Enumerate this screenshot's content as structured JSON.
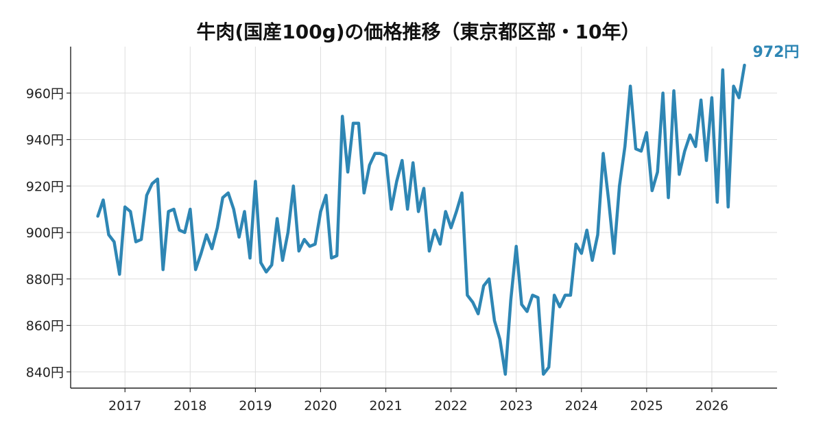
{
  "chart_data": {
    "type": "line",
    "title": "牛肉(国産100g)の価格推移（東京都区部・10年）",
    "xlabel": "",
    "ylabel": "",
    "x_ticks": [
      "2017",
      "2018",
      "2019",
      "2020",
      "2021",
      "2022",
      "2023",
      "2024",
      "2025",
      "2026"
    ],
    "y_ticks": [
      840,
      860,
      880,
      900,
      920,
      940,
      960
    ],
    "y_tick_labels": [
      "840円",
      "860円",
      "880円",
      "900円",
      "920円",
      "940円",
      "960円"
    ],
    "ylim": [
      833,
      980
    ],
    "xlim": [
      "2016-03",
      "2027-01"
    ],
    "grid": true,
    "legend": "none",
    "series": [
      {
        "color": "#2e86b4",
        "points": [
          [
            "2016-08",
            907
          ],
          [
            "2016-09",
            914
          ],
          [
            "2016-10",
            899
          ],
          [
            "2016-11",
            896
          ],
          [
            "2016-12",
            882
          ],
          [
            "2017-01",
            911
          ],
          [
            "2017-02",
            909
          ],
          [
            "2017-03",
            896
          ],
          [
            "2017-04",
            897
          ],
          [
            "2017-05",
            916
          ],
          [
            "2017-06",
            921
          ],
          [
            "2017-07",
            923
          ],
          [
            "2017-08",
            884
          ],
          [
            "2017-09",
            909
          ],
          [
            "2017-10",
            910
          ],
          [
            "2017-11",
            901
          ],
          [
            "2017-12",
            900
          ],
          [
            "2018-01",
            910
          ],
          [
            "2018-02",
            884
          ],
          [
            "2018-03",
            891
          ],
          [
            "2018-04",
            899
          ],
          [
            "2018-05",
            893
          ],
          [
            "2018-06",
            902
          ],
          [
            "2018-07",
            915
          ],
          [
            "2018-08",
            917
          ],
          [
            "2018-09",
            910
          ],
          [
            "2018-10",
            898
          ],
          [
            "2018-11",
            909
          ],
          [
            "2018-12",
            889
          ],
          [
            "2019-01",
            922
          ],
          [
            "2019-02",
            887
          ],
          [
            "2019-03",
            883
          ],
          [
            "2019-04",
            886
          ],
          [
            "2019-05",
            906
          ],
          [
            "2019-06",
            888
          ],
          [
            "2019-07",
            900
          ],
          [
            "2019-08",
            920
          ],
          [
            "2019-09",
            892
          ],
          [
            "2019-10",
            897
          ],
          [
            "2019-11",
            894
          ],
          [
            "2019-12",
            895
          ],
          [
            "2020-01",
            909
          ],
          [
            "2020-02",
            916
          ],
          [
            "2020-03",
            889
          ],
          [
            "2020-04",
            890
          ],
          [
            "2020-05",
            950
          ],
          [
            "2020-06",
            926
          ],
          [
            "2020-07",
            947
          ],
          [
            "2020-08",
            947
          ],
          [
            "2020-09",
            917
          ],
          [
            "2020-10",
            929
          ],
          [
            "2020-11",
            934
          ],
          [
            "2020-12",
            934
          ],
          [
            "2021-01",
            933
          ],
          [
            "2021-02",
            910
          ],
          [
            "2021-03",
            922
          ],
          [
            "2021-04",
            931
          ],
          [
            "2021-05",
            910
          ],
          [
            "2021-06",
            930
          ],
          [
            "2021-07",
            909
          ],
          [
            "2021-08",
            919
          ],
          [
            "2021-09",
            892
          ],
          [
            "2021-10",
            901
          ],
          [
            "2021-11",
            895
          ],
          [
            "2021-12",
            909
          ],
          [
            "2022-01",
            902
          ],
          [
            "2022-02",
            909
          ],
          [
            "2022-03",
            917
          ],
          [
            "2022-04",
            873
          ],
          [
            "2022-05",
            870
          ],
          [
            "2022-06",
            865
          ],
          [
            "2022-07",
            877
          ],
          [
            "2022-08",
            880
          ],
          [
            "2022-09",
            862
          ],
          [
            "2022-10",
            854
          ],
          [
            "2022-11",
            839
          ],
          [
            "2022-12",
            871
          ],
          [
            "2023-01",
            894
          ],
          [
            "2023-02",
            869
          ],
          [
            "2023-03",
            866
          ],
          [
            "2023-04",
            873
          ],
          [
            "2023-05",
            872
          ],
          [
            "2023-06",
            839
          ],
          [
            "2023-07",
            842
          ],
          [
            "2023-08",
            873
          ],
          [
            "2023-09",
            868
          ],
          [
            "2023-10",
            873
          ],
          [
            "2023-11",
            873
          ],
          [
            "2023-12",
            895
          ],
          [
            "2024-01",
            891
          ],
          [
            "2024-02",
            901
          ],
          [
            "2024-03",
            888
          ],
          [
            "2024-04",
            899
          ],
          [
            "2024-05",
            934
          ],
          [
            "2024-06",
            914
          ],
          [
            "2024-07",
            891
          ],
          [
            "2024-08",
            920
          ],
          [
            "2024-09",
            937
          ],
          [
            "2024-10",
            963
          ],
          [
            "2024-11",
            936
          ],
          [
            "2024-12",
            935
          ],
          [
            "2025-01",
            943
          ],
          [
            "2025-02",
            918
          ],
          [
            "2025-03",
            926
          ],
          [
            "2025-04",
            960
          ],
          [
            "2025-05",
            915
          ],
          [
            "2025-06",
            961
          ],
          [
            "2025-07",
            925
          ],
          [
            "2025-08",
            935
          ],
          [
            "2025-09",
            942
          ],
          [
            "2025-10",
            937
          ],
          [
            "2025-11",
            957
          ],
          [
            "2025-12",
            931
          ],
          [
            "2026-01",
            958
          ],
          [
            "2026-02",
            913
          ],
          [
            "2026-03",
            970
          ],
          [
            "2026-04",
            911
          ],
          [
            "2026-05",
            963
          ],
          [
            "2026-06",
            958
          ],
          [
            "2026-07",
            972
          ]
        ]
      }
    ],
    "annotations": [
      {
        "text": "972円",
        "attach": "last-point",
        "color": "#2e86b4"
      }
    ]
  }
}
